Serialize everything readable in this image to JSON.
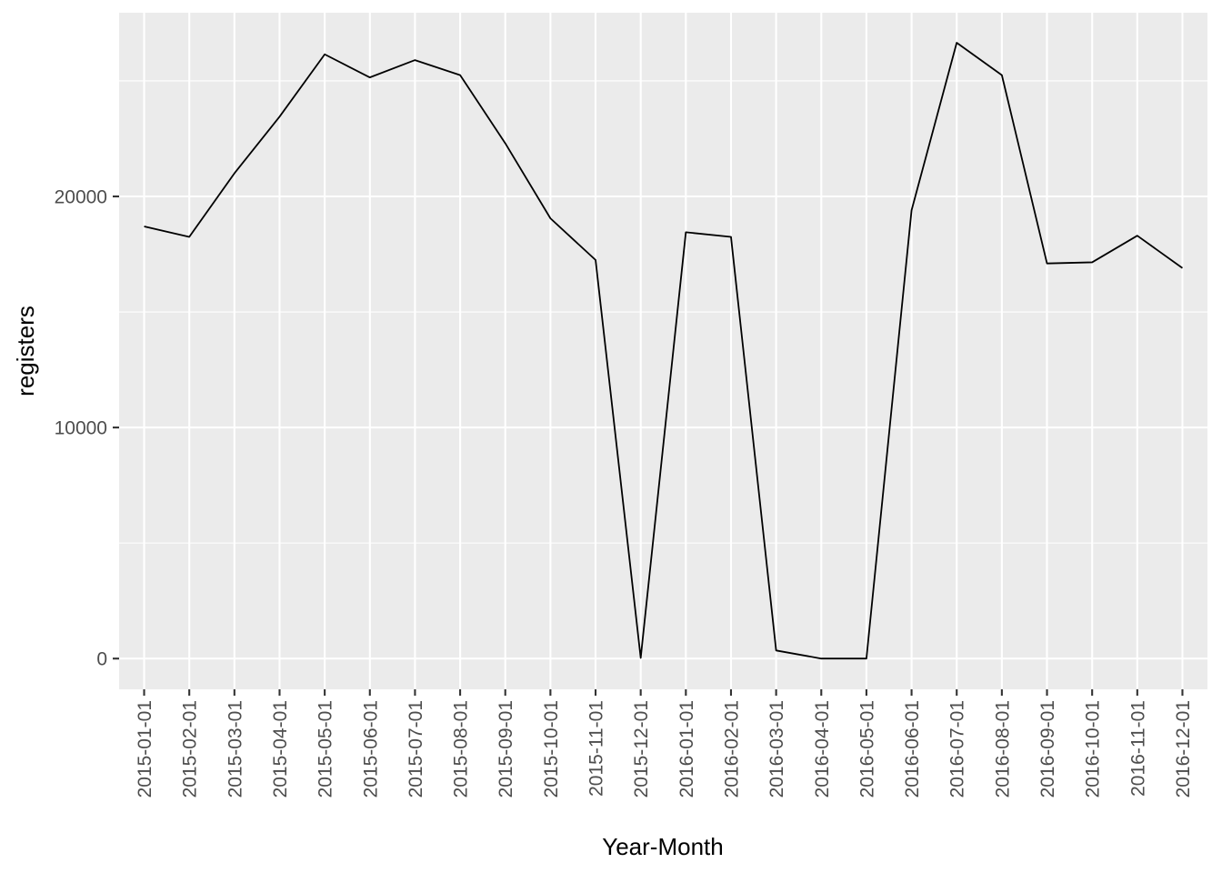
{
  "chart_data": {
    "type": "line",
    "title": "",
    "xlabel": "Year-Month",
    "ylabel": "registers",
    "x": [
      "2015-01-01",
      "2015-02-01",
      "2015-03-01",
      "2015-04-01",
      "2015-05-01",
      "2015-06-01",
      "2015-07-01",
      "2015-08-01",
      "2015-09-01",
      "2015-10-01",
      "2015-11-01",
      "2015-12-01",
      "2016-01-01",
      "2016-02-01",
      "2016-03-01",
      "2016-04-01",
      "2016-05-01",
      "2016-06-01",
      "2016-07-01",
      "2016-08-01",
      "2016-09-01",
      "2016-10-01",
      "2016-11-01",
      "2016-12-01"
    ],
    "series": [
      {
        "values": [
          18700,
          18250,
          21000,
          23450,
          26150,
          25150,
          25900,
          25250,
          22300,
          19050,
          17250,
          30,
          18450,
          18250,
          350,
          0,
          0,
          19400,
          26650,
          25250,
          17100,
          17150,
          18300,
          16900
        ],
        "color": "#000000"
      }
    ],
    "yticks": [
      0,
      10000,
      20000
    ],
    "ytick_labels": [
      "0",
      "10000",
      "20000"
    ],
    "ylim": [
      -1330,
      27950
    ],
    "grid": true,
    "legend": "none",
    "panel_background": "#EBEBEB",
    "grid_color": "#FFFFFF"
  }
}
